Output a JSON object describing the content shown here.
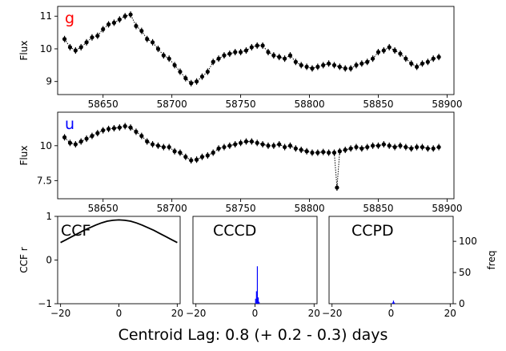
{
  "figure": {
    "footer": "Centroid Lag:   0.8 (+  0.2 -  0.3) days"
  },
  "chart_data": [
    {
      "id": "g",
      "type": "scatter",
      "panel_label": "g",
      "panel_label_color": "#ff0000",
      "ylabel": "Flux",
      "xlim": [
        58617,
        58905
      ],
      "ylim": [
        8.6,
        11.3
      ],
      "xticks": [
        58650,
        58700,
        58750,
        58800,
        58850,
        58900
      ],
      "yticks": [
        9,
        10,
        11
      ],
      "marker_color": "#000000",
      "series": [
        {
          "x": [
            58622,
            58626,
            58630,
            58634,
            58638,
            58642,
            58646,
            58650,
            58654,
            58658,
            58662,
            58666,
            58670,
            58674,
            58678,
            58682,
            58686,
            58690,
            58694,
            58698,
            58702,
            58706,
            58710,
            58714,
            58718,
            58722,
            58726,
            58730,
            58734,
            58738,
            58742,
            58746,
            58750,
            58754,
            58758,
            58762,
            58766,
            58770,
            58774,
            58778,
            58782,
            58786,
            58790,
            58794,
            58798,
            58802,
            58806,
            58810,
            58814,
            58818,
            58822,
            58826,
            58830,
            58834,
            58838,
            58842,
            58846,
            58850,
            58854,
            58858,
            58862,
            58866,
            58870,
            58874,
            58878,
            58882,
            58886,
            58890,
            58894
          ],
          "y": [
            10.3,
            10.05,
            9.95,
            10.05,
            10.2,
            10.35,
            10.4,
            10.6,
            10.75,
            10.8,
            10.9,
            11.0,
            11.05,
            10.7,
            10.55,
            10.3,
            10.2,
            10.0,
            9.8,
            9.7,
            9.5,
            9.3,
            9.1,
            8.95,
            9.0,
            9.15,
            9.3,
            9.6,
            9.7,
            9.8,
            9.85,
            9.9,
            9.9,
            9.95,
            10.05,
            10.1,
            10.1,
            9.9,
            9.8,
            9.75,
            9.7,
            9.8,
            9.6,
            9.5,
            9.45,
            9.4,
            9.45,
            9.5,
            9.55,
            9.5,
            9.45,
            9.4,
            9.4,
            9.5,
            9.55,
            9.6,
            9.7,
            9.9,
            9.95,
            10.05,
            9.95,
            9.85,
            9.7,
            9.55,
            9.45,
            9.55,
            9.6,
            9.7,
            9.75
          ]
        }
      ]
    },
    {
      "id": "u",
      "type": "scatter",
      "panel_label": "u",
      "panel_label_color": "#0000ff",
      "ylabel": "Flux",
      "xlim": [
        58617,
        58905
      ],
      "ylim": [
        6.2,
        12.4
      ],
      "xticks": [
        58650,
        58700,
        58750,
        58800,
        58850,
        58900
      ],
      "yticks": [
        7.5,
        10.0
      ],
      "marker_color": "#000000",
      "series": [
        {
          "x": [
            58622,
            58626,
            58630,
            58634,
            58638,
            58642,
            58646,
            58650,
            58654,
            58658,
            58662,
            58666,
            58670,
            58674,
            58678,
            58682,
            58686,
            58690,
            58694,
            58698,
            58702,
            58706,
            58710,
            58714,
            58718,
            58722,
            58726,
            58730,
            58734,
            58738,
            58742,
            58746,
            58750,
            58754,
            58758,
            58762,
            58766,
            58770,
            58774,
            58778,
            58782,
            58786,
            58790,
            58794,
            58798,
            58802,
            58806,
            58810,
            58814,
            58818,
            58820,
            58822,
            58826,
            58830,
            58834,
            58838,
            58842,
            58846,
            58850,
            58854,
            58858,
            58862,
            58866,
            58870,
            58874,
            58878,
            58882,
            58886,
            58890,
            58894
          ],
          "y": [
            10.6,
            10.2,
            10.1,
            10.3,
            10.5,
            10.7,
            10.9,
            11.1,
            11.2,
            11.25,
            11.3,
            11.4,
            11.3,
            11.0,
            10.7,
            10.3,
            10.1,
            10.0,
            9.9,
            9.9,
            9.6,
            9.5,
            9.2,
            8.95,
            9.0,
            9.2,
            9.3,
            9.5,
            9.8,
            9.9,
            10.0,
            10.1,
            10.2,
            10.3,
            10.3,
            10.2,
            10.1,
            10.0,
            10.0,
            10.1,
            9.9,
            10.0,
            9.8,
            9.7,
            9.6,
            9.5,
            9.5,
            9.55,
            9.5,
            9.5,
            7.0,
            9.6,
            9.7,
            9.8,
            9.9,
            9.8,
            9.9,
            10.0,
            10.0,
            10.1,
            10.0,
            9.9,
            10.0,
            9.9,
            9.8,
            9.9,
            9.9,
            9.8,
            9.8,
            9.9
          ]
        }
      ]
    },
    {
      "id": "ccf",
      "type": "line",
      "panel_label": "CCF",
      "ylabel": "CCF r",
      "xlim": [
        -21,
        21
      ],
      "ylim": [
        -1,
        1
      ],
      "xticks": [
        -20,
        0,
        20
      ],
      "yticks": [
        -1,
        0,
        1
      ],
      "x": [
        -20,
        -18,
        -16,
        -14,
        -12,
        -10,
        -8,
        -6,
        -4,
        -2,
        0,
        2,
        4,
        6,
        8,
        10,
        12,
        14,
        16,
        18,
        20
      ],
      "y": [
        0.4,
        0.47,
        0.54,
        0.61,
        0.68,
        0.74,
        0.8,
        0.85,
        0.89,
        0.91,
        0.92,
        0.91,
        0.89,
        0.85,
        0.8,
        0.74,
        0.68,
        0.61,
        0.54,
        0.47,
        0.4
      ]
    },
    {
      "id": "cccd",
      "type": "bar",
      "panel_label": "CCCD",
      "xlim": [
        -21,
        21
      ],
      "ylim": [
        0,
        140
      ],
      "xticks": [
        -20,
        0,
        20
      ],
      "bar_color": "#0000ff",
      "x": [
        0.2,
        0.5,
        0.8,
        1.1,
        1.4
      ],
      "values": [
        8,
        20,
        60,
        10,
        3
      ]
    },
    {
      "id": "ccpd",
      "type": "bar",
      "panel_label": "CCPD",
      "ylabel": "freq",
      "xlim": [
        -21,
        21
      ],
      "ylim": [
        0,
        140
      ],
      "xticks": [
        -20,
        0,
        20
      ],
      "yticks": [
        0,
        50,
        100
      ],
      "bar_color": "#0000ff",
      "x": [
        0.5,
        0.8,
        1.1
      ],
      "values": [
        2,
        5,
        2
      ]
    }
  ]
}
